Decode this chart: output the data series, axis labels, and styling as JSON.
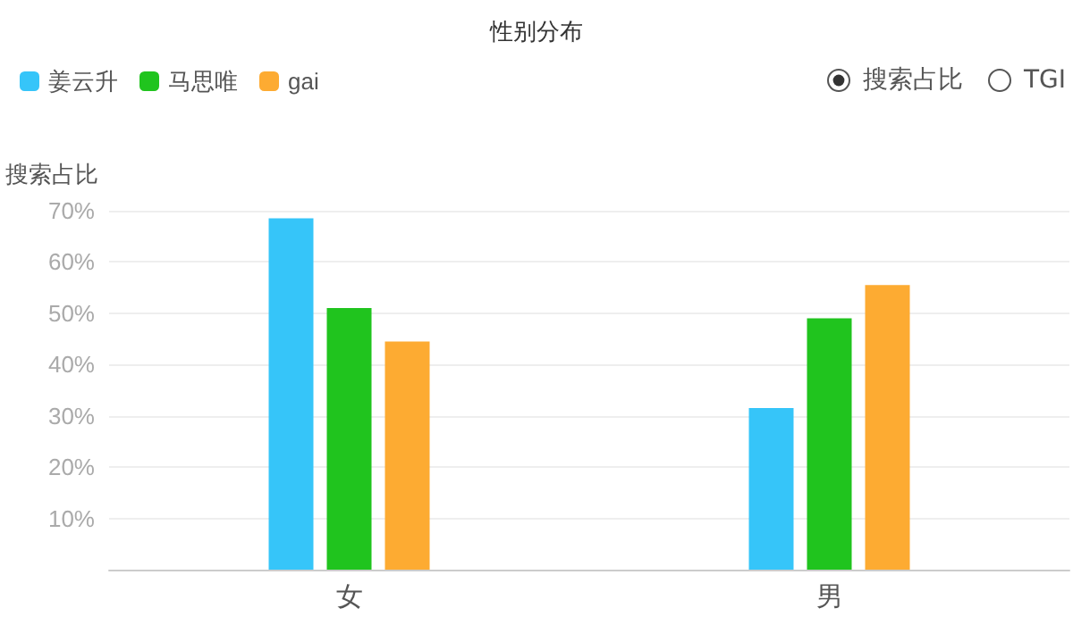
{
  "chart_data": {
    "type": "bar",
    "title": "性别分布",
    "ylabel": "搜索占比",
    "categories": [
      "女",
      "男"
    ],
    "series": [
      {
        "name": "姜云升",
        "color": "#36c5f9",
        "values": [
          68.5,
          31.5
        ]
      },
      {
        "name": "马思唯",
        "color": "#20c41e",
        "values": [
          51,
          49
        ]
      },
      {
        "name": "gai",
        "color": "#fdab32",
        "values": [
          44.5,
          55.5
        ]
      }
    ],
    "ylim": [
      0,
      70
    ],
    "yticks": [
      {
        "value": 0,
        "label": null
      },
      {
        "value": 10,
        "label": "10%"
      },
      {
        "value": 20,
        "label": "20%"
      },
      {
        "value": 30,
        "label": "30%"
      },
      {
        "value": 40,
        "label": "40%"
      },
      {
        "value": 50,
        "label": "50%"
      },
      {
        "value": 60,
        "label": "60%"
      },
      {
        "value": 70,
        "label": "70%"
      }
    ],
    "grid": "y",
    "legend": "top left",
    "annotations": [
      "搜索占比",
      "TGI"
    ]
  }
}
